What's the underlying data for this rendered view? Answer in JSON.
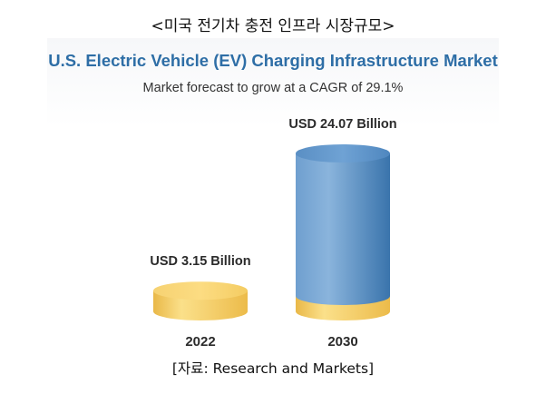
{
  "caption_top": "<미국 전기차 충전 인프라 시장규모>",
  "caption_bottom": "[자료: Research and Markets]",
  "chart_data": {
    "type": "bar",
    "style": "3d-cylinder",
    "title": "U.S. Electric Vehicle (EV) Charging Infrastructure Market",
    "subtitle": "Market forecast to grow at a CAGR of 29.1%",
    "categories": [
      "2022",
      "2030"
    ],
    "values": [
      3.15,
      24.07
    ],
    "unit": "USD Billion",
    "value_labels": [
      "USD 3.15 Billion",
      "USD 24.07 Billion"
    ],
    "xlabel": "",
    "ylabel": "",
    "grid": false,
    "legend": "none"
  },
  "colors": {
    "title": "#2e6ea6",
    "gold_light": "#fbe59a",
    "gold": "#f3c95a",
    "gold_dark": "#e6b23f",
    "blue_light": "#8fb7dd",
    "blue": "#5b93c8",
    "blue_dark": "#356fa6",
    "blue_top": "#6a9fd2"
  }
}
